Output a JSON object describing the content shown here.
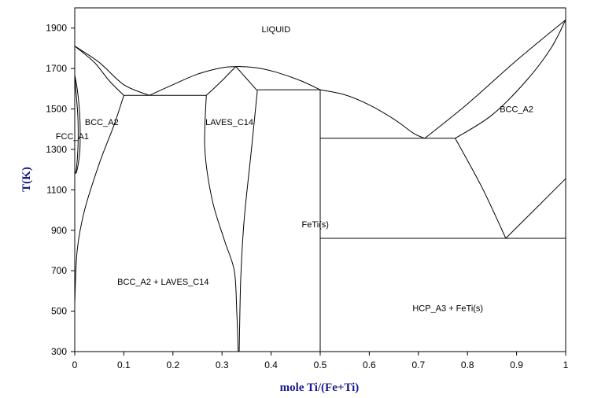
{
  "chart_data": {
    "type": "phase-diagram",
    "title": "",
    "xlabel": "mole Ti/(Fe+Ti)",
    "ylabel": "T(K)",
    "xlim": [
      0,
      1
    ],
    "ylim": [
      300,
      2000
    ],
    "x_ticks": [
      {
        "value": 0,
        "label": "0"
      },
      {
        "value": 0.1,
        "label": "0.1"
      },
      {
        "value": 0.2,
        "label": "0.2"
      },
      {
        "value": 0.3,
        "label": "0.3"
      },
      {
        "value": 0.4,
        "label": "0.4"
      },
      {
        "value": 0.5,
        "label": "0.5"
      },
      {
        "value": 0.6,
        "label": "0.6"
      },
      {
        "value": 0.7,
        "label": "0.7"
      },
      {
        "value": 0.8,
        "label": "0.8"
      },
      {
        "value": 0.9,
        "label": "0.9"
      },
      {
        "value": 1,
        "label": "1"
      }
    ],
    "y_ticks": [
      {
        "value": 300,
        "label": "300"
      },
      {
        "value": 500,
        "label": "500"
      },
      {
        "value": 700,
        "label": "700"
      },
      {
        "value": 900,
        "label": "900"
      },
      {
        "value": 1100,
        "label": "1100"
      },
      {
        "value": 1300,
        "label": "1300"
      },
      {
        "value": 1500,
        "label": "1500"
      },
      {
        "value": 1700,
        "label": "1700"
      },
      {
        "value": 1900,
        "label": "1900"
      }
    ],
    "regions": [
      {
        "label": "LIQUID",
        "x": 0.41,
        "y": 1880
      },
      {
        "label": "BCC_A2",
        "x": 0.055,
        "y": 1420
      },
      {
        "label": "FCC_A1",
        "x": -0.005,
        "y": 1350
      },
      {
        "label": "LAVES_C14",
        "x": 0.315,
        "y": 1420
      },
      {
        "label": "FeTi(s)",
        "x": 0.49,
        "y": 915
      },
      {
        "label": "BCC_A2",
        "x": 0.9,
        "y": 1485
      },
      {
        "label": "BCC_A2 + LAVES_C14",
        "x": 0.18,
        "y": 630
      },
      {
        "label": "HCP_A3 + FeTi(s)",
        "x": 0.76,
        "y": 500
      }
    ],
    "boundaries": [
      {
        "name": "liquidus-fe-side",
        "points": [
          [
            0,
            1811
          ],
          [
            0.05,
            1730
          ],
          [
            0.1,
            1620
          ],
          [
            0.152,
            1567
          ]
        ]
      },
      {
        "name": "solidus-bcc-fe",
        "points": [
          [
            0,
            1811
          ],
          [
            0.04,
            1730
          ],
          [
            0.07,
            1640
          ],
          [
            0.1,
            1567
          ]
        ]
      },
      {
        "name": "liquidus-laves-left",
        "points": [
          [
            0.152,
            1567
          ],
          [
            0.2,
            1620
          ],
          [
            0.25,
            1672
          ],
          [
            0.3,
            1704
          ],
          [
            0.335,
            1710
          ]
        ]
      },
      {
        "name": "laves-solidus-left",
        "points": [
          [
            0.268,
            1567
          ],
          [
            0.3,
            1640
          ],
          [
            0.328,
            1710
          ]
        ]
      },
      {
        "name": "laves-solidus-right",
        "points": [
          [
            0.328,
            1710
          ],
          [
            0.35,
            1650
          ],
          [
            0.372,
            1590
          ]
        ]
      },
      {
        "name": "liquidus-laves-right",
        "points": [
          [
            0.335,
            1710
          ],
          [
            0.37,
            1704
          ],
          [
            0.41,
            1682
          ],
          [
            0.46,
            1640
          ],
          [
            0.5,
            1595
          ]
        ]
      },
      {
        "name": "liquidus-feti",
        "points": [
          [
            0.5,
            1595
          ],
          [
            0.55,
            1570
          ],
          [
            0.6,
            1520
          ],
          [
            0.65,
            1450
          ],
          [
            0.69,
            1380
          ],
          [
            0.713,
            1355
          ]
        ]
      },
      {
        "name": "liquidus-ti-side",
        "points": [
          [
            0.713,
            1355
          ],
          [
            0.8,
            1525
          ],
          [
            0.9,
            1740
          ],
          [
            1,
            1941
          ]
        ]
      },
      {
        "name": "solidus-bcc-ti",
        "points": [
          [
            0.775,
            1355
          ],
          [
            0.85,
            1470
          ],
          [
            0.92,
            1640
          ],
          [
            0.97,
            1800
          ],
          [
            1,
            1941
          ]
        ]
      },
      {
        "name": "bcc-solvus-ti",
        "points": [
          [
            0.775,
            1355
          ],
          [
            0.83,
            1110
          ],
          [
            0.878,
            860
          ]
        ]
      },
      {
        "name": "hcp-bcc-boundary",
        "points": [
          [
            0.878,
            860
          ],
          [
            0.94,
            1010
          ],
          [
            1,
            1155
          ]
        ]
      },
      {
        "name": "bcc-fe-solvus",
        "points": [
          [
            0,
            540
          ],
          [
            0.005,
            800
          ],
          [
            0.02,
            1000
          ],
          [
            0.05,
            1230
          ],
          [
            0.08,
            1420
          ],
          [
            0.1,
            1567
          ]
        ]
      },
      {
        "name": "laves-fe-rich-solvus",
        "points": [
          [
            0.268,
            1567
          ],
          [
            0.265,
            1300
          ],
          [
            0.28,
            1050
          ],
          [
            0.305,
            850
          ],
          [
            0.325,
            700
          ],
          [
            0.33,
            500
          ],
          [
            0.333,
            300
          ]
        ]
      },
      {
        "name": "laves-ti-rich-solvus",
        "points": [
          [
            0.372,
            1590
          ],
          [
            0.36,
            1300
          ],
          [
            0.345,
            950
          ],
          [
            0.338,
            650
          ],
          [
            0.335,
            300
          ]
        ]
      },
      {
        "name": "gamma-loop-outer",
        "points": [
          [
            0,
            1667
          ],
          [
            0.005,
            1600
          ],
          [
            0.01,
            1480
          ],
          [
            0.011,
            1380
          ],
          [
            0.01,
            1280
          ],
          [
            0.004,
            1190
          ],
          [
            0,
            1185
          ]
        ]
      },
      {
        "name": "gamma-loop-inner",
        "points": [
          [
            0,
            1667
          ],
          [
            0.002,
            1600
          ],
          [
            0.006,
            1480
          ],
          [
            0.007,
            1380
          ],
          [
            0.006,
            1280
          ],
          [
            0.003,
            1200
          ],
          [
            0,
            1185
          ]
        ]
      },
      {
        "name": "feti-left-line",
        "points": [
          [
            0.5,
            300
          ],
          [
            0.5,
            1595
          ]
        ]
      },
      {
        "name": "eutectic-fe-laves",
        "points": [
          [
            0.1,
            1567
          ],
          [
            0.268,
            1567
          ]
        ]
      },
      {
        "name": "peritectic-laves-feti",
        "points": [
          [
            0.372,
            1595
          ],
          [
            0.5,
            1595
          ]
        ]
      },
      {
        "name": "eutectic-feti-bcc",
        "points": [
          [
            0.5,
            1355
          ],
          [
            0.775,
            1355
          ]
        ]
      },
      {
        "name": "eutectoid-line",
        "points": [
          [
            0.5,
            860
          ],
          [
            1,
            860
          ]
        ]
      }
    ]
  }
}
